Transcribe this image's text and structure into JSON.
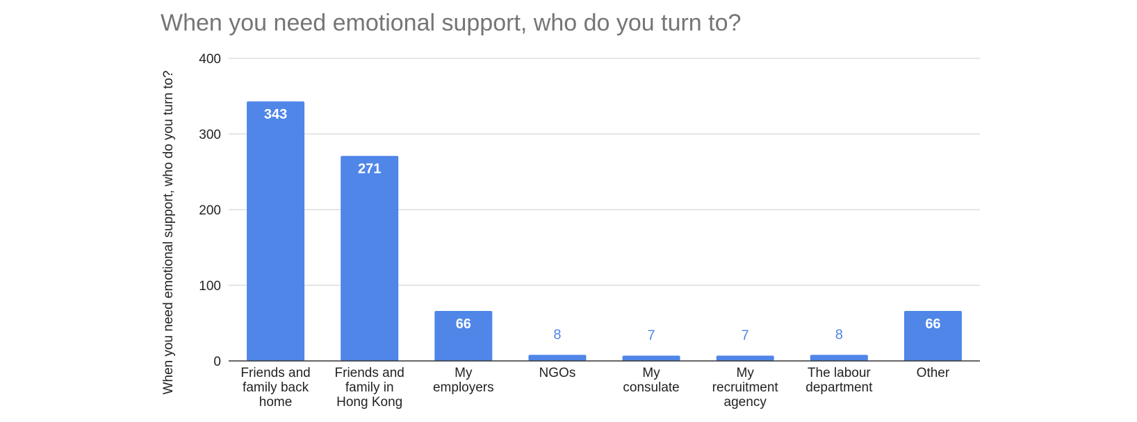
{
  "chart_data": {
    "type": "bar",
    "title": "When you need emotional support, who do you turn to?",
    "ylabel": "When you need emotional support, who do you turn to?",
    "xlabel": "",
    "categories": [
      "Friends and family back home",
      "Friends and family in Hong Kong",
      "My employers",
      "NGOs",
      "My consulate",
      "My recruitment agency",
      "The labour department",
      "Other"
    ],
    "category_lines": [
      [
        "Friends and",
        "family back",
        "home"
      ],
      [
        "Friends and",
        "family in",
        "Hong Kong"
      ],
      [
        "My",
        "employers"
      ],
      [
        "NGOs"
      ],
      [
        "My",
        "consulate"
      ],
      [
        "My",
        "recruitment",
        "agency"
      ],
      [
        "The labour",
        "department"
      ],
      [
        "Other"
      ]
    ],
    "values": [
      343,
      271,
      66,
      8,
      7,
      7,
      8,
      66
    ],
    "ylim": [
      0,
      400
    ],
    "yticks": [
      0,
      100,
      200,
      300,
      400
    ],
    "grid": true,
    "legend": "none",
    "bar_color": "#4f86e8",
    "gridline_color": "#cccccc",
    "axis_color": "#333333",
    "label_inside_color": "#ffffff",
    "label_outside_color": "#4f86e8"
  }
}
